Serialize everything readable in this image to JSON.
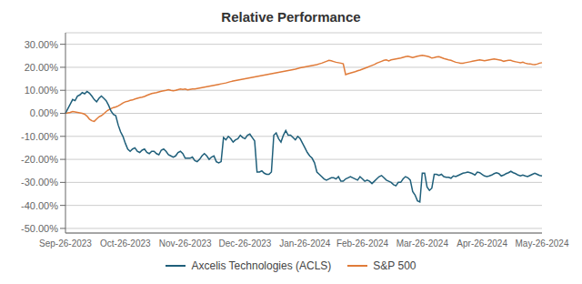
{
  "chart_data": {
    "type": "line",
    "title": "Relative Performance",
    "categories": [
      "Sep-26-2023",
      null,
      null,
      null,
      null,
      null,
      null,
      null,
      null,
      null,
      null,
      null,
      null,
      null,
      null,
      null,
      null,
      null,
      null,
      null,
      null,
      null,
      null,
      null,
      null,
      "Oct-26-2023",
      null,
      null,
      null,
      null,
      null,
      null,
      null,
      null,
      null,
      null,
      null,
      null,
      null,
      null,
      null,
      null,
      null,
      null,
      null,
      null,
      null,
      null,
      null,
      null,
      "Nov-26-2023",
      null,
      null,
      null,
      null,
      null,
      null,
      null,
      null,
      null,
      null,
      null,
      null,
      null,
      null,
      null,
      null,
      null,
      null,
      null,
      null,
      null,
      null,
      null,
      null,
      "Dec-26-2023",
      null,
      null,
      null,
      null,
      null,
      null,
      null,
      null,
      null,
      null,
      null,
      null,
      null,
      null,
      null,
      null,
      null,
      null,
      null,
      null,
      null,
      null,
      null,
      null,
      "Jan-26-2024",
      null,
      null,
      null,
      null,
      null,
      null,
      null,
      null,
      null,
      null,
      null,
      null,
      null,
      null,
      null,
      null,
      null,
      null,
      null,
      null,
      null,
      null,
      null,
      "Feb-26-2024",
      null,
      null,
      null,
      null,
      null,
      null,
      null,
      null,
      null,
      null,
      null,
      null,
      null,
      null,
      null,
      null,
      null,
      null,
      null,
      null,
      null,
      null,
      null,
      null,
      "Mar-26-2024",
      null,
      null,
      null,
      null,
      null,
      null,
      null,
      null,
      null,
      null,
      null,
      null,
      null,
      null,
      null,
      null,
      null,
      null,
      null,
      null,
      null,
      null,
      null,
      null,
      "Apr-26-2024",
      null,
      null,
      null,
      null,
      null,
      null,
      null,
      null,
      null,
      null,
      null,
      null,
      null,
      null,
      null,
      null,
      null,
      null,
      null,
      null,
      null,
      null,
      null,
      null,
      "May-26-2024"
    ],
    "series": [
      {
        "name": "Axcelis Technologies (ACLS)",
        "color": "#1f5f7a",
        "values": [
          0.0,
          0.02,
          0.04,
          0.06,
          0.055,
          0.075,
          0.08,
          0.09,
          0.085,
          0.095,
          0.088,
          0.075,
          0.06,
          0.05,
          0.065,
          0.075,
          0.065,
          0.055,
          0.035,
          0.01,
          -0.005,
          -0.01,
          -0.05,
          -0.08,
          -0.1,
          -0.13,
          -0.155,
          -0.165,
          -0.155,
          -0.15,
          -0.165,
          -0.17,
          -0.16,
          -0.155,
          -0.17,
          -0.175,
          -0.165,
          -0.165,
          -0.175,
          -0.18,
          -0.16,
          -0.155,
          -0.165,
          -0.18,
          -0.185,
          -0.19,
          -0.185,
          -0.17,
          -0.165,
          -0.175,
          -0.195,
          -0.195,
          -0.195,
          -0.19,
          -0.205,
          -0.21,
          -0.2,
          -0.185,
          -0.175,
          -0.185,
          -0.2,
          -0.19,
          -0.185,
          -0.21,
          -0.215,
          -0.21,
          -0.105,
          -0.115,
          -0.1,
          -0.11,
          -0.125,
          -0.115,
          -0.11,
          -0.095,
          -0.105,
          -0.11,
          -0.095,
          -0.09,
          -0.105,
          -0.12,
          -0.255,
          -0.255,
          -0.25,
          -0.26,
          -0.265,
          -0.265,
          -0.255,
          -0.095,
          -0.085,
          -0.11,
          -0.125,
          -0.095,
          -0.075,
          -0.095,
          -0.095,
          -0.105,
          -0.115,
          -0.1,
          -0.11,
          -0.13,
          -0.15,
          -0.17,
          -0.185,
          -0.195,
          -0.215,
          -0.255,
          -0.265,
          -0.275,
          -0.285,
          -0.29,
          -0.285,
          -0.28,
          -0.28,
          -0.285,
          -0.275,
          -0.295,
          -0.295,
          -0.285,
          -0.28,
          -0.275,
          -0.28,
          -0.285,
          -0.29,
          -0.275,
          -0.285,
          -0.295,
          -0.29,
          -0.295,
          -0.305,
          -0.295,
          -0.285,
          -0.275,
          -0.27,
          -0.28,
          -0.29,
          -0.295,
          -0.3,
          -0.31,
          -0.315,
          -0.3,
          -0.3,
          -0.285,
          -0.275,
          -0.28,
          -0.29,
          -0.34,
          -0.355,
          -0.38,
          -0.385,
          -0.26,
          -0.26,
          -0.32,
          -0.335,
          -0.325,
          -0.265,
          -0.265,
          -0.27,
          -0.265,
          -0.275,
          -0.278,
          -0.278,
          -0.282,
          -0.272,
          -0.275,
          -0.27,
          -0.265,
          -0.26,
          -0.258,
          -0.255,
          -0.258,
          -0.262,
          -0.268,
          -0.255,
          -0.258,
          -0.265,
          -0.272,
          -0.275,
          -0.272,
          -0.268,
          -0.262,
          -0.258,
          -0.262,
          -0.272,
          -0.268,
          -0.262,
          -0.258,
          -0.252,
          -0.258,
          -0.262,
          -0.268,
          -0.272,
          -0.268,
          -0.272,
          -0.275,
          -0.27,
          -0.265,
          -0.26,
          -0.265,
          -0.27,
          -0.272
        ]
      },
      {
        "name": "S&P 500",
        "color": "#e07b39",
        "values": [
          0.0,
          0.002,
          0.004,
          0.008,
          0.006,
          0.004,
          0.002,
          0.0,
          -0.004,
          -0.012,
          -0.025,
          -0.032,
          -0.035,
          -0.025,
          -0.015,
          -0.01,
          -0.002,
          0.008,
          0.015,
          0.02,
          0.025,
          0.028,
          0.032,
          0.038,
          0.045,
          0.05,
          0.052,
          0.056,
          0.058,
          0.062,
          0.065,
          0.068,
          0.07,
          0.073,
          0.078,
          0.082,
          0.086,
          0.088,
          0.09,
          0.093,
          0.096,
          0.098,
          0.1,
          0.103,
          0.1,
          0.098,
          0.1,
          0.103,
          0.106,
          0.104,
          0.106,
          0.102,
          0.104,
          0.106,
          0.106,
          0.108,
          0.11,
          0.112,
          0.114,
          0.116,
          0.118,
          0.12,
          0.122,
          0.124,
          0.126,
          0.128,
          0.13,
          0.132,
          0.135,
          0.138,
          0.14,
          0.142,
          0.144,
          0.146,
          0.148,
          0.15,
          0.152,
          0.154,
          0.156,
          0.158,
          0.16,
          0.162,
          0.164,
          0.166,
          0.168,
          0.17,
          0.172,
          0.174,
          0.176,
          0.178,
          0.18,
          0.182,
          0.184,
          0.186,
          0.188,
          0.19,
          0.192,
          0.195,
          0.198,
          0.2,
          0.202,
          0.204,
          0.206,
          0.208,
          0.21,
          0.212,
          0.215,
          0.218,
          0.222,
          0.226,
          0.23,
          0.228,
          0.225,
          0.222,
          0.22,
          0.218,
          0.215,
          0.168,
          0.172,
          0.175,
          0.178,
          0.181,
          0.185,
          0.188,
          0.192,
          0.196,
          0.2,
          0.204,
          0.208,
          0.212,
          0.218,
          0.222,
          0.226,
          0.23,
          0.232,
          0.228,
          0.232,
          0.234,
          0.236,
          0.238,
          0.24,
          0.243,
          0.246,
          0.248,
          0.245,
          0.242,
          0.245,
          0.248,
          0.25,
          0.252,
          0.25,
          0.248,
          0.245,
          0.24,
          0.242,
          0.245,
          0.246,
          0.242,
          0.238,
          0.235,
          0.232,
          0.23,
          0.226,
          0.222,
          0.22,
          0.218,
          0.218,
          0.22,
          0.222,
          0.224,
          0.226,
          0.228,
          0.23,
          0.232,
          0.23,
          0.228,
          0.23,
          0.232,
          0.234,
          0.236,
          0.234,
          0.232,
          0.23,
          0.226,
          0.228,
          0.23,
          0.23,
          0.226,
          0.224,
          0.222,
          0.22,
          0.222,
          0.218,
          0.216,
          0.215,
          0.213,
          0.212,
          0.214,
          0.218,
          0.22
        ]
      }
    ],
    "ylim": [
      -0.52,
      0.35
    ],
    "yticks": [
      {
        "value": -0.5,
        "label": "-50.00%"
      },
      {
        "value": -0.4,
        "label": "-40.00%"
      },
      {
        "value": -0.3,
        "label": "-30.00%"
      },
      {
        "value": -0.2,
        "label": "-20.00%"
      },
      {
        "value": -0.1,
        "label": "-10.00%"
      },
      {
        "value": 0.0,
        "label": "0.00%"
      },
      {
        "value": 0.1,
        "label": "10.00%"
      },
      {
        "value": 0.2,
        "label": "20.00%"
      },
      {
        "value": 0.3,
        "label": "30.00%"
      }
    ],
    "grid": true,
    "legend": "bottom"
  }
}
